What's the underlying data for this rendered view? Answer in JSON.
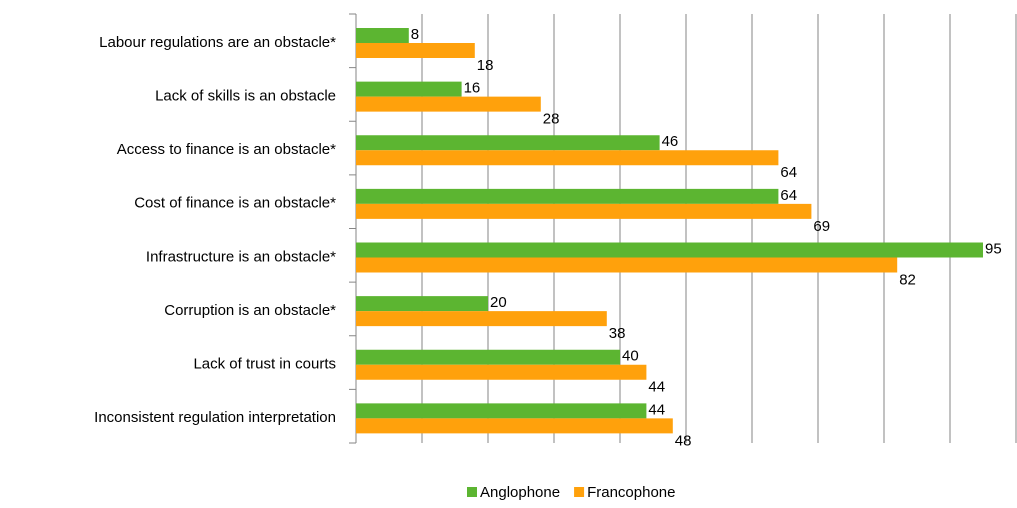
{
  "chart_data": {
    "type": "hbar",
    "categories": [
      "Labour regulations are an obstacle*",
      "Lack of skills is an obstacle",
      "Access to finance is an obstacle*",
      "Cost of finance is an obstacle*",
      "Infrastructure is an obstacle*",
      "Corruption is an obstacle*",
      "Lack of trust in courts",
      "Inconsistent regulation interpretation"
    ],
    "series": [
      {
        "name": "Anglophone",
        "color": "#5cb531",
        "values": [
          8,
          16,
          46,
          64,
          95,
          20,
          40,
          44
        ]
      },
      {
        "name": "Francophone",
        "color": "#ffa10c",
        "values": [
          18,
          28,
          64,
          69,
          82,
          38,
          44,
          48
        ]
      }
    ],
    "xlim": [
      0,
      100
    ],
    "xticks": [
      0,
      10,
      20,
      30,
      40,
      50,
      60,
      70,
      80,
      90,
      100
    ],
    "grid": true,
    "legend": "bottom"
  }
}
